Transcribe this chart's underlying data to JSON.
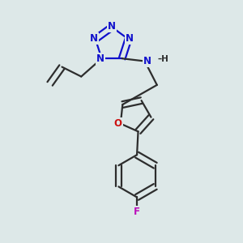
{
  "bg_color": "#dde8e8",
  "bond_color": "#2d2d2d",
  "N_color": "#1010cc",
  "O_color": "#cc1010",
  "F_color": "#bb10bb",
  "line_width": 1.6,
  "dbl_sep": 0.13,
  "figsize": [
    3.0,
    3.0
  ],
  "dpi": 100,
  "xlim": [
    0,
    10
  ],
  "ylim": [
    0,
    10
  ]
}
